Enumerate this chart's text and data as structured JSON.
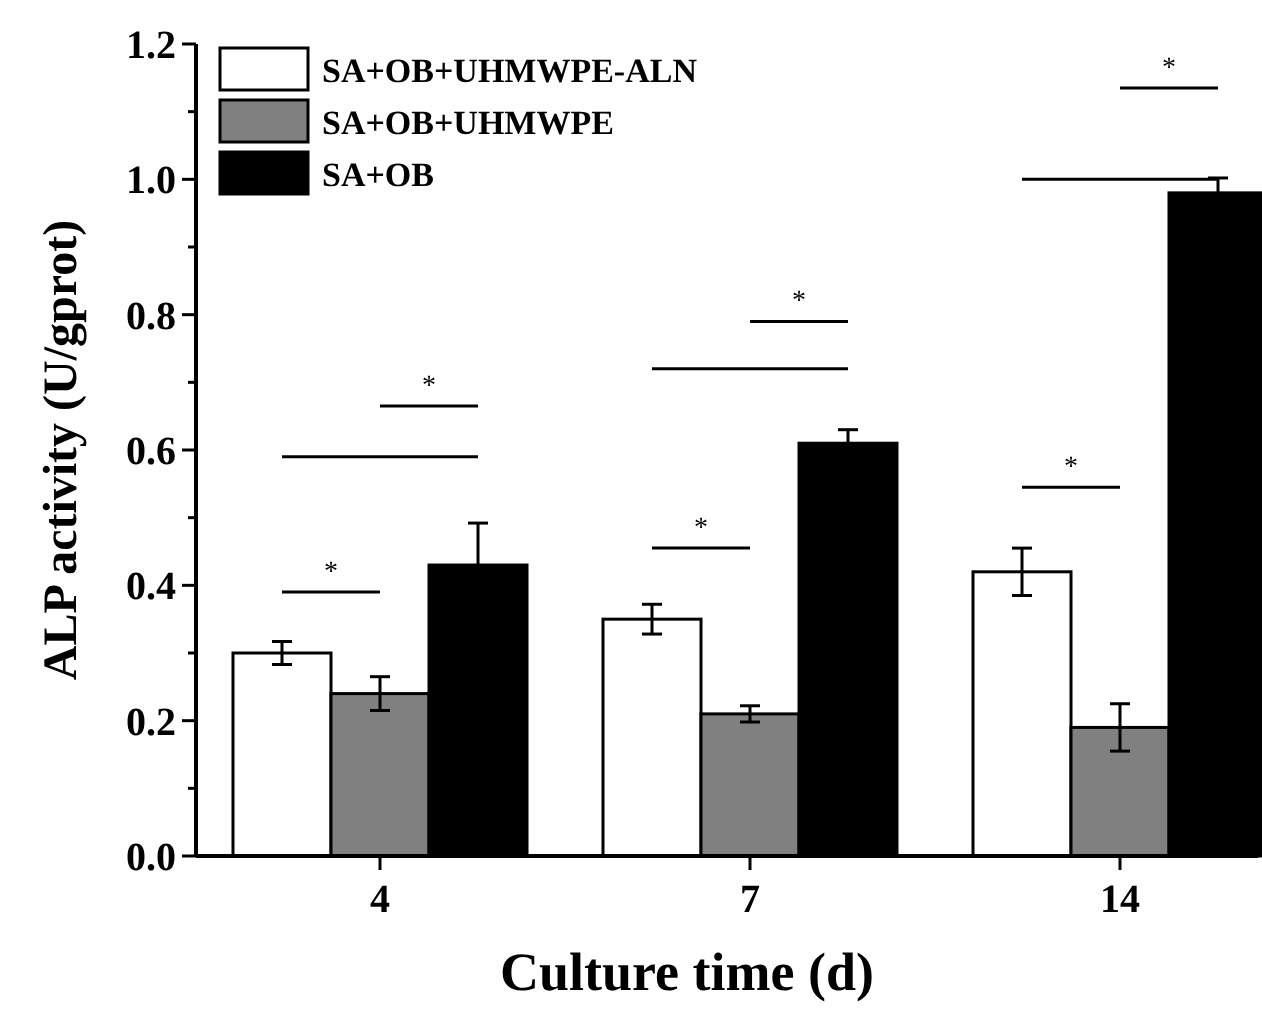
{
  "chart_data": {
    "type": "bar",
    "xlabel": "Culture time (d)",
    "ylabel": "ALP activity (U/gprot)",
    "categories": [
      "4",
      "7",
      "14"
    ],
    "series": [
      {
        "name": "SA+OB+UHMWPE-ALN",
        "color": "#ffffff",
        "values": [
          0.3,
          0.35,
          0.42
        ],
        "errors": [
          0.017,
          0.022,
          0.035
        ]
      },
      {
        "name": "SA+OB+UHMWPE",
        "color": "#808080",
        "values": [
          0.24,
          0.21,
          0.19
        ],
        "errors": [
          0.025,
          0.012,
          0.035
        ]
      },
      {
        "name": "SA+OB",
        "color": "#000000",
        "values": [
          0.43,
          0.61,
          0.98
        ],
        "errors": [
          0.062,
          0.02,
          0.022
        ]
      }
    ],
    "ylim": [
      0,
      1.2
    ],
    "yticks": [
      {
        "value": 0,
        "label": "0.0"
      },
      {
        "value": 0.1,
        "label": null
      },
      0.2,
      {
        "value": 0.3,
        "label": null
      },
      0.4,
      {
        "value": 0.5,
        "label": null
      },
      0.6,
      {
        "value": 0.7,
        "label": null
      },
      0.8,
      {
        "value": 0.9,
        "label": null
      },
      {
        "value": 1,
        "label": "1.0"
      },
      {
        "value": 1.1,
        "label": null
      },
      1.2
    ],
    "annotations": [
      "*",
      "*",
      "*",
      "*",
      "*",
      "*"
    ],
    "legend": "top left",
    "grid": false
  }
}
